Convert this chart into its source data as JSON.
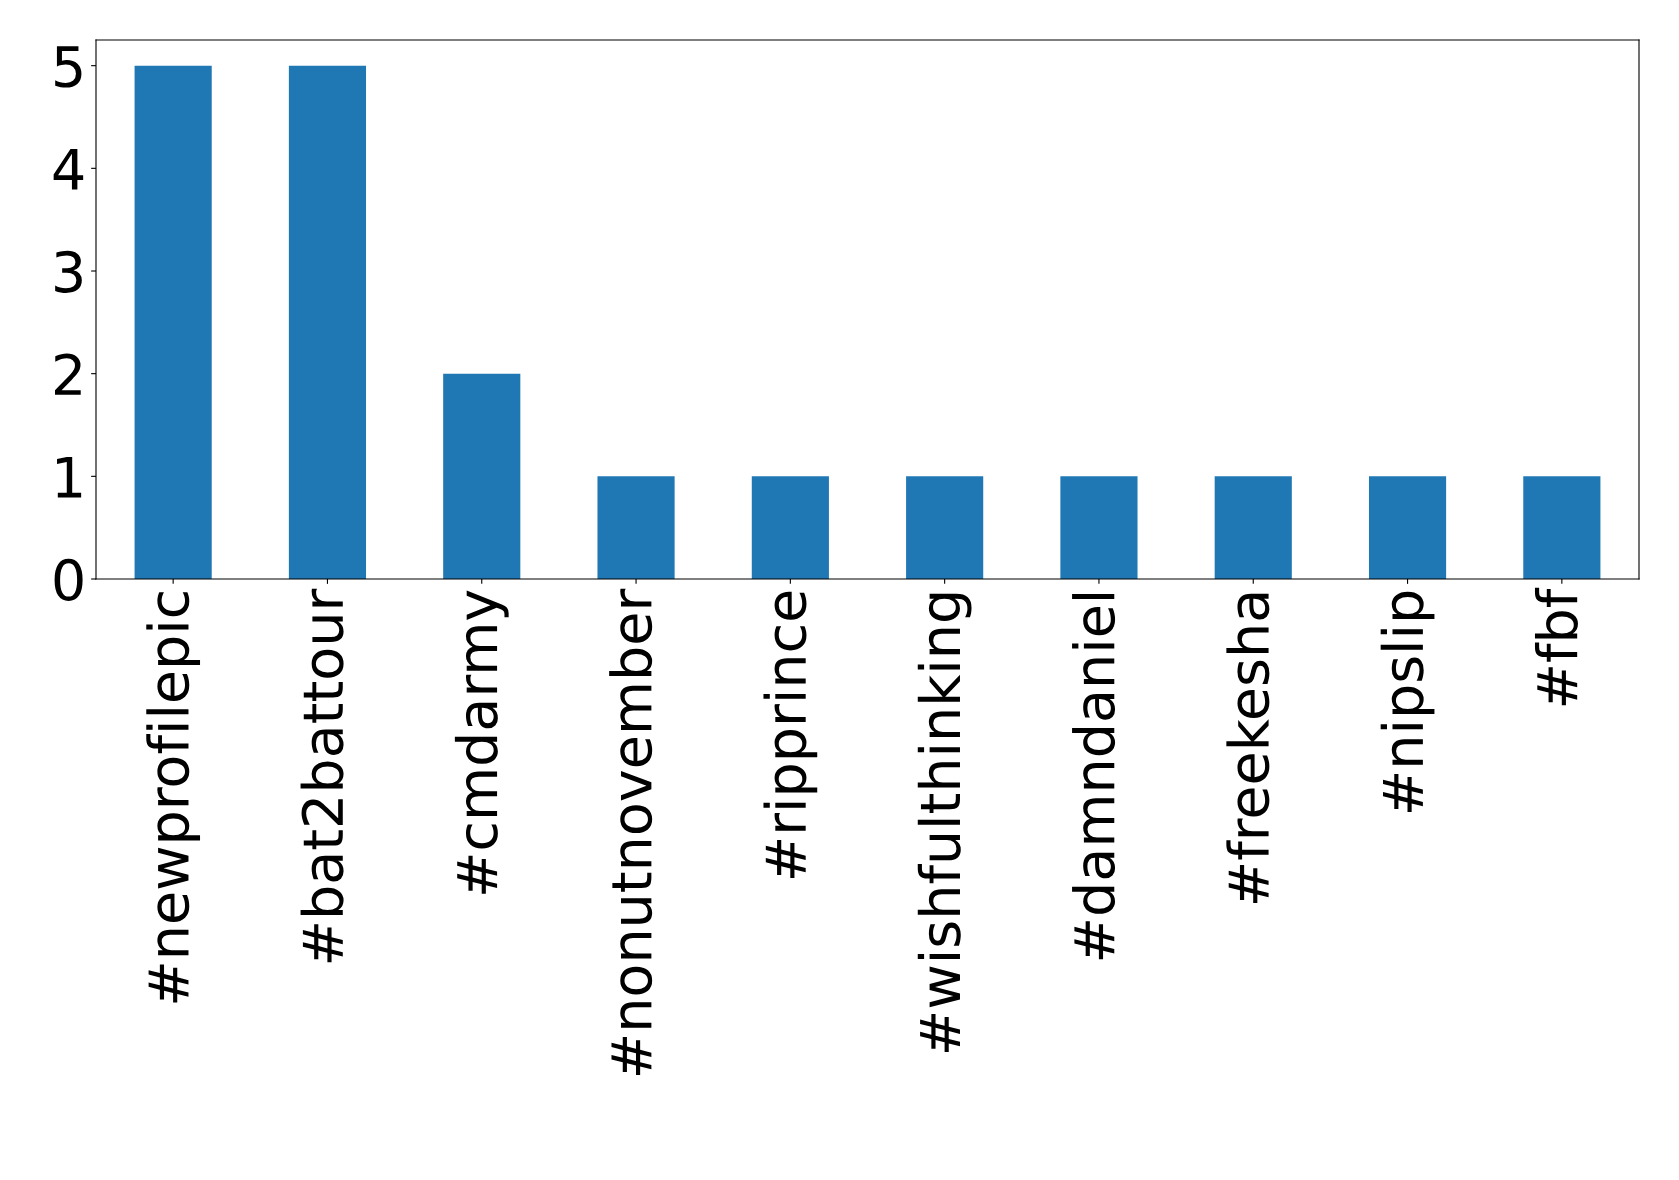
{
  "chart_data": {
    "type": "bar",
    "categories": [
      "#newprofilepic",
      "#bat2battour",
      "#cmdarmy",
      "#nonutnovember",
      "#ripprince",
      "#wishfulthinking",
      "#damndaniel",
      "#freekesha",
      "#nipslip",
      "#fbf"
    ],
    "values": [
      5,
      5,
      2,
      1,
      1,
      1,
      1,
      1,
      1,
      1
    ],
    "color": "#1f77b4",
    "ylim": [
      0,
      5.25
    ],
    "yticks": [
      0,
      1,
      2,
      3,
      4,
      5
    ],
    "grid": false,
    "legend": false
  }
}
